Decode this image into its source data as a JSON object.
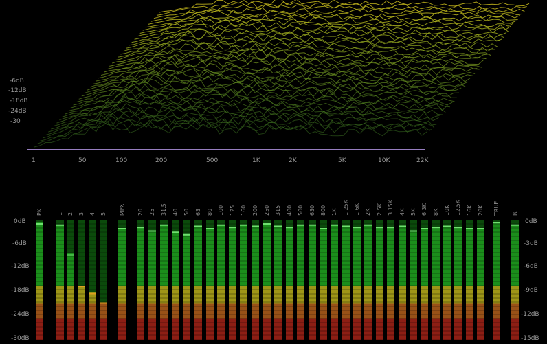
{
  "analyzer": {
    "waterfall": {
      "level_labels": [
        "-6dB",
        "-12dB",
        "-18dB",
        "-24dB",
        "-30"
      ],
      "freq_labels": [
        "1",
        "50",
        "100",
        "200",
        "500",
        "1K",
        "2K",
        "5K",
        "10K",
        "22K"
      ]
    },
    "meters": {
      "left_scale": [
        "0dB",
        "-6dB",
        "-12dB",
        "-18dB",
        "-24dB",
        "-30dB"
      ],
      "right_scale": [
        "0dB",
        "-3dB",
        "-6dB",
        "-9dB",
        "-12dB",
        "-15dB"
      ],
      "channels": [
        {
          "label": "PK",
          "level": 0.98,
          "peak": 0.96
        },
        {
          "label": "1",
          "level": 0.96,
          "peak": 0.95
        },
        {
          "label": "2",
          "level": 0.72,
          "peak": 0.7
        },
        {
          "label": "3",
          "level": 0.45,
          "peak": 0.44
        },
        {
          "label": "4",
          "level": 0.4,
          "peak": 0.38
        },
        {
          "label": "5",
          "level": 0.3,
          "peak": 0.3
        },
        {
          "label": "MPX",
          "level": 0.92,
          "peak": 0.92
        },
        {
          "label": "20",
          "level": 0.94,
          "peak": 0.93
        },
        {
          "label": "25",
          "level": 0.9,
          "peak": 0.9
        },
        {
          "label": "31.5",
          "level": 0.96,
          "peak": 0.95
        },
        {
          "label": "40",
          "level": 0.9,
          "peak": 0.89
        },
        {
          "label": "50",
          "level": 0.88,
          "peak": 0.87
        },
        {
          "label": "63",
          "level": 0.95,
          "peak": 0.94
        },
        {
          "label": "80",
          "level": 0.92,
          "peak": 0.92
        },
        {
          "label": "100",
          "level": 0.96,
          "peak": 0.95
        },
        {
          "label": "125",
          "level": 0.93,
          "peak": 0.93
        },
        {
          "label": "160",
          "level": 0.96,
          "peak": 0.95
        },
        {
          "label": "200",
          "level": 0.94,
          "peak": 0.94
        },
        {
          "label": "250",
          "level": 0.96,
          "peak": 0.96
        },
        {
          "label": "315",
          "level": 0.95,
          "peak": 0.94
        },
        {
          "label": "400",
          "level": 0.94,
          "peak": 0.93
        },
        {
          "label": "500",
          "level": 0.96,
          "peak": 0.95
        },
        {
          "label": "630",
          "level": 0.95,
          "peak": 0.95
        },
        {
          "label": "800",
          "level": 0.92,
          "peak": 0.92
        },
        {
          "label": "1K",
          "level": 0.96,
          "peak": 0.95
        },
        {
          "label": "1.25K",
          "level": 0.94,
          "peak": 0.94
        },
        {
          "label": "1.6K",
          "level": 0.93,
          "peak": 0.93
        },
        {
          "label": "2K",
          "level": 0.95,
          "peak": 0.95
        },
        {
          "label": "2.5K",
          "level": 0.93,
          "peak": 0.93
        },
        {
          "label": "3.15K",
          "level": 0.94,
          "peak": 0.93
        },
        {
          "label": "4K",
          "level": 0.95,
          "peak": 0.94
        },
        {
          "label": "5K",
          "level": 0.9,
          "peak": 0.9
        },
        {
          "label": "6.3K",
          "level": 0.93,
          "peak": 0.92
        },
        {
          "label": "8K",
          "level": 0.93,
          "peak": 0.93
        },
        {
          "label": "10K",
          "level": 0.94,
          "peak": 0.94
        },
        {
          "label": "12.5K",
          "level": 0.93,
          "peak": 0.93
        },
        {
          "label": "16K",
          "level": 0.92,
          "peak": 0.92
        },
        {
          "label": "20K",
          "level": 0.92,
          "peak": 0.92
        },
        {
          "label": "TRUE",
          "level": 0.97,
          "peak": 0.97
        },
        {
          "label": "R",
          "level": 0.95,
          "peak": 0.95
        }
      ]
    }
  },
  "colors": {
    "green": "#1f9a1f",
    "green_dark": "#0b4a0b",
    "yellow": "#b8a21a",
    "orange": "#b2521a",
    "red": "#a51616",
    "background": "#000000"
  }
}
